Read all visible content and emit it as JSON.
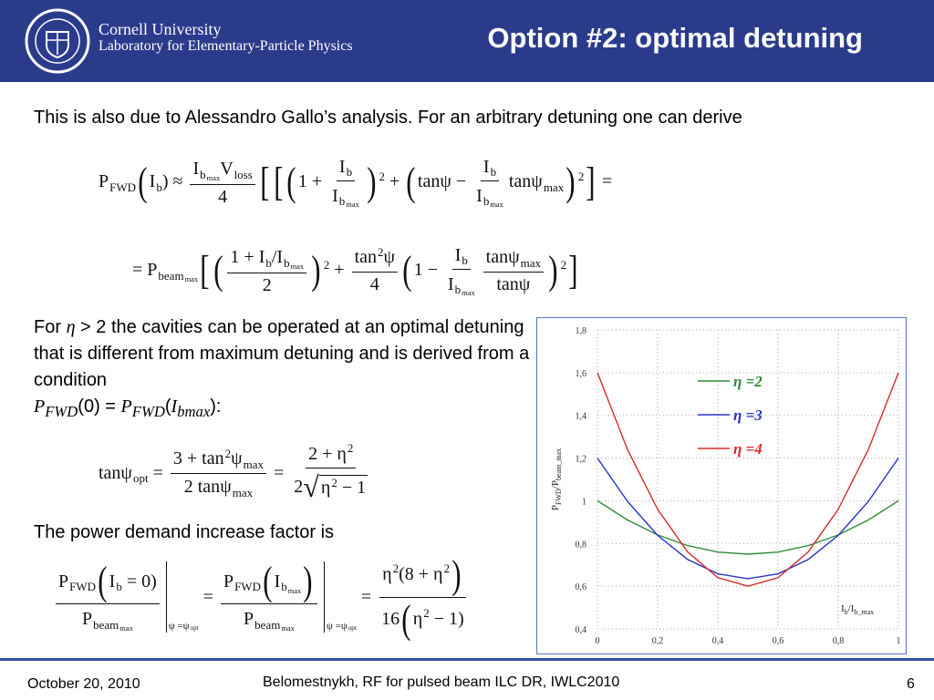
{
  "header": {
    "institution": "Cornell University",
    "lab": "Laboratory for Elementary-Particle Physics",
    "title": "Option #2: optimal detuning"
  },
  "paragraphs": [
    [
      "This is also due to Alessandro Gallo’s analysis. For an arbitrary detuning one can derive"
    ],
    [
      "For ",
      "η",
      " > 2 the cavities can be operated at an optimal detuning that is different from maximum detuning and is derived from a condition ",
      "P",
      "FWD",
      "(0) = ",
      "P",
      "FWD",
      "(",
      "I",
      "bmax",
      "):"
    ],
    [
      "The power demand increase factor is"
    ]
  ],
  "equations": [
    [
      {
        "base": "P",
        "sub": "FWD"
      },
      "(",
      {
        "base": "I",
        "sub": "b"
      },
      ") ≈ ",
      {
        "num": [
          {
            "base": "I",
            "sub": {
              "base": "b",
              "sub": "max"
            }
          },
          {
            "base": "V",
            "sub": "loss"
          }
        ],
        "den": "4"
      },
      "[",
      "[",
      "(",
      "1 + ",
      {
        "num": {
          "base": "I",
          "sub": "b"
        },
        "den": {
          "base": "I",
          "sub": {
            "base": "b",
            "sub": "max"
          }
        }
      },
      {
        "base": ")",
        "sup": "2"
      },
      " + ",
      "(",
      "tanψ − ",
      {
        "num": {
          "base": "I",
          "sub": "b"
        },
        "den": {
          "base": "I",
          "sub": {
            "base": "b",
            "sub": "max"
          }
        }
      },
      {
        "base": "tanψ",
        "sub": "max"
      },
      {
        "base": ")",
        "sup": "2"
      },
      "]",
      " ="
    ],
    [
      "= ",
      {
        "base": "P",
        "sub": {
          "base": "beam",
          "sub": "max"
        }
      },
      "[",
      "(",
      {
        "num": [
          "1 + ",
          {
            "base": "I",
            "sub": "b"
          },
          "/",
          {
            "base": "I",
            "sub": {
              "base": "b",
              "sub": "max"
            }
          }
        ],
        "den": "2"
      },
      {
        "base": ")",
        "sup": "2"
      },
      " + ",
      {
        "num": [
          {
            "base": "tan",
            "sup": "2"
          },
          "ψ"
        ],
        "den": "4"
      },
      "(",
      "1 − ",
      {
        "num": {
          "base": "I",
          "sub": "b"
        },
        "den": {
          "base": "I",
          "sub": {
            "base": "b",
            "sub": "max"
          }
        }
      },
      {
        "num": {
          "base": "tanψ",
          "sub": "max"
        },
        "den": "tanψ"
      },
      {
        "base": ")",
        "sup": "2"
      },
      "]"
    ],
    [
      {
        "base": "tanψ",
        "sub": "opt"
      },
      " = ",
      {
        "num": [
          "3 + ",
          {
            "base": "tan",
            "sup": "2"
          },
          {
            "base": "ψ",
            "sub": "max"
          }
        ],
        "den": [
          "2 tan",
          {
            "base": "ψ",
            "sub": "max"
          }
        ]
      },
      " = ",
      {
        "num": [
          "2 + ",
          {
            "base": "η",
            "sup": "2"
          }
        ],
        "den": [
          "2",
          {
            "radical": "√",
            "body": [
              {
                "base": "η",
                "sup": "2"
              },
              " − 1"
            ]
          }
        ]
      }
    ],
    [
      {
        "eval": {
          "num": [
            {
              "base": "P",
              "sub": "FWD"
            },
            "(",
            {
              "base": "I",
              "sub": "b"
            },
            " = 0)"
          ],
          "den": {
            "base": "P",
            "sub": {
              "base": "beam",
              "sub": "max"
            }
          }
        },
        "at": [
          "ψ =",
          {
            "base": "ψ",
            "sub": "opt"
          }
        ]
      },
      " = ",
      {
        "eval": {
          "num": [
            {
              "base": "P",
              "sub": "FWD"
            },
            "(",
            {
              "base": "I",
              "sub": {
                "base": "b",
                "sub": "max"
              }
            },
            ")"
          ],
          "den": {
            "base": "P",
            "sub": {
              "base": "beam",
              "sub": "max"
            }
          }
        },
        "at": [
          "ψ =",
          {
            "base": "ψ",
            "sub": "opt"
          }
        ]
      },
      " = ",
      {
        "num": [
          {
            "base": "η",
            "sup": "2"
          },
          "(8 + ",
          {
            "base": "η",
            "sup": "2"
          },
          ")"
        ],
        "den": [
          "16",
          "(",
          {
            "base": "η",
            "sup": "2"
          },
          " − 1)"
        ]
      }
    ]
  ],
  "chart": {
    "type": "line",
    "x": [
      0,
      0.1,
      0.2,
      0.3,
      0.4,
      0.5,
      0.6,
      0.7,
      0.8,
      0.9,
      1
    ],
    "series": [
      {
        "name": "η =2",
        "color": "#2e8b3a",
        "values": [
          1,
          0.91,
          0.84,
          0.79,
          0.76,
          0.75,
          0.76,
          0.79,
          0.84,
          0.91,
          1
        ]
      },
      {
        "name": "η =3",
        "color": "#2a35c8",
        "values": [
          1.2,
          0.997,
          0.838,
          0.725,
          0.658,
          0.635,
          0.658,
          0.725,
          0.838,
          0.997,
          1.2
        ]
      },
      {
        "name": "η =4",
        "color": "#d62a2a",
        "values": [
          1.6,
          1.24,
          0.96,
          0.76,
          0.64,
          0.6,
          0.64,
          0.76,
          0.96,
          1.24,
          1.6
        ]
      }
    ],
    "xlim": [
      0,
      1
    ],
    "ylim": [
      0.4,
      1.8
    ],
    "xticks": [
      0,
      {
        "value": 0.2,
        "label": "0,2"
      },
      {
        "value": 0.4,
        "label": "0,4"
      },
      {
        "value": 0.6,
        "label": "0,6"
      },
      {
        "value": 0.8,
        "label": "0,8"
      },
      1
    ],
    "yticks": [
      {
        "value": 0.4,
        "label": "0,4"
      },
      {
        "value": 0.6,
        "label": "0,6"
      },
      {
        "value": 0.8,
        "label": "0,8"
      },
      1,
      {
        "value": 1.2,
        "label": "1,2"
      },
      {
        "value": 1.4,
        "label": "1,4"
      },
      {
        "value": 1.6,
        "label": "1,6"
      },
      {
        "value": 1.8,
        "label": "1,8"
      }
    ],
    "x_label": [
      "I",
      "b",
      "/I",
      "b_max"
    ],
    "y_label": [
      "P",
      "FWD",
      "/P",
      "beam_max"
    ],
    "grid": true
  },
  "footer": {
    "date": "October 20, 2010",
    "center": "Belomestnykh, RF for pulsed beam ILC DR, IWLC2010",
    "page": "6"
  }
}
